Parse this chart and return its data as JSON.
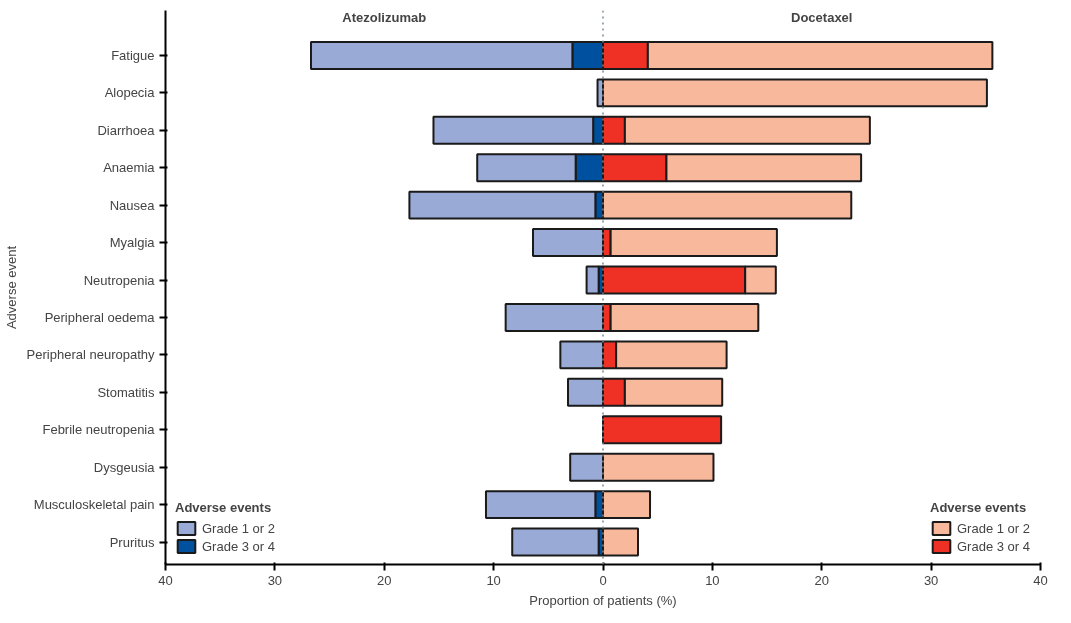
{
  "chart_data": {
    "type": "bar",
    "orientation": "horizontal",
    "stacked": true,
    "xlabel": "Proportion of patients (%)",
    "ylabel": "Adverse event",
    "legend_title": "Adverse events",
    "categories": [
      "Fatigue",
      "Alopecia",
      "Diarrhoea",
      "Anaemia",
      "Nausea",
      "Myalgia",
      "Neutropenia",
      "Peripheral oedema",
      "Peripheral neuropathy",
      "Stomatitis",
      "Febrile neutropenia",
      "Dysgeusia",
      "Musculoskeletal pain",
      "Pruritus"
    ],
    "series": [
      {
        "name": "Grade 3 or 4",
        "color": "#0050a0",
        "values": [
          -2.8,
          0,
          -0.9,
          -2.5,
          -0.7,
          0,
          -0.4,
          0,
          0,
          0,
          0,
          0,
          -0.7,
          -0.4
        ]
      },
      {
        "name": "Grade 1 or 2",
        "color": "#9aaad6",
        "values": [
          -23.9,
          -0.5,
          -14.6,
          -9.0,
          -17.0,
          -6.4,
          -1.1,
          -8.9,
          -3.9,
          -3.2,
          0,
          -3.0,
          -10.0,
          -7.9
        ]
      },
      {
        "name": "Grade 3 or 4",
        "color": "#ee3124",
        "values": [
          4.1,
          0,
          2.0,
          5.8,
          0,
          0.7,
          13.0,
          0.7,
          1.2,
          2.0,
          10.8,
          0,
          0,
          0
        ]
      },
      {
        "name": "Grade 1 or 2",
        "color": "#f8b89c",
        "values": [
          31.5,
          35.1,
          22.4,
          17.8,
          22.7,
          15.2,
          2.8,
          13.5,
          10.1,
          8.9,
          0,
          10.1,
          4.3,
          3.2
        ]
      }
    ],
    "xlim": [
      -40,
      40
    ],
    "xticks": [
      {
        "value": -40,
        "label": "40"
      },
      {
        "value": -30,
        "label": "30"
      },
      {
        "value": -20,
        "label": "20"
      },
      {
        "value": -10,
        "label": "10"
      },
      0,
      10,
      20,
      30,
      40
    ],
    "ref_lines": [
      {
        "axis": "x",
        "value": 0,
        "line_style": "dotted",
        "color": "#7a8a99"
      }
    ],
    "annotations": [
      "Atezolizumab",
      "Docetaxel"
    ],
    "legend": "bottom",
    "grid": false
  }
}
